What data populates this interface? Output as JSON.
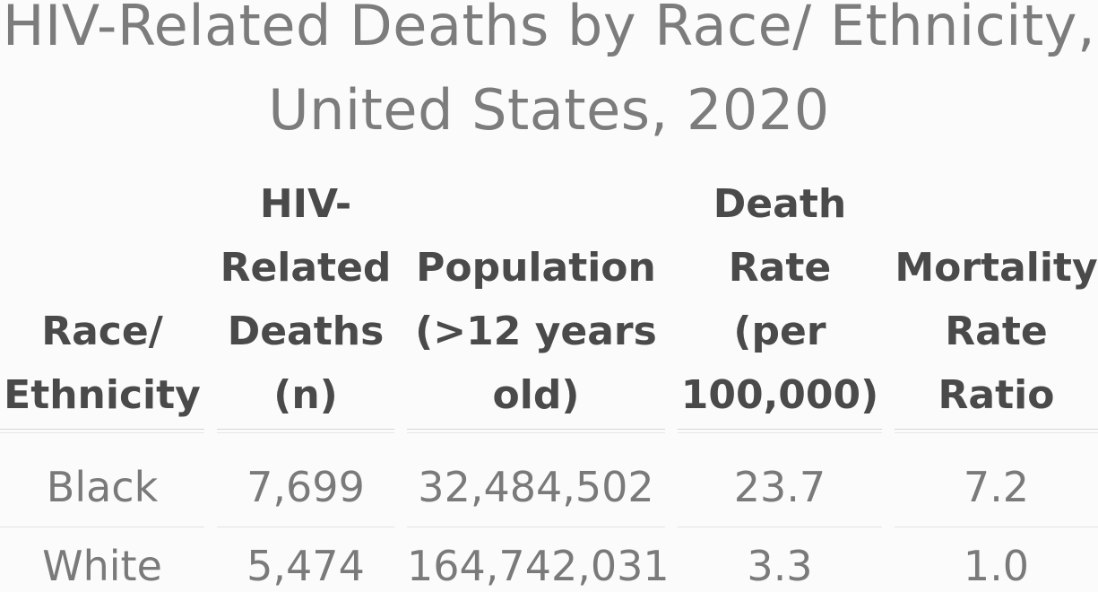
{
  "title": {
    "line1": "HIV-Related Deaths by Race/ Ethnicity,",
    "line2": "United States, 2020"
  },
  "table": {
    "headers": [
      "Race/\nEthnicity",
      "HIV-\nRelated\nDeaths\n(n)",
      "Population\n(>12 years\nold)",
      "Death\nRate\n(per\n100,000)",
      "Mortality\nRate\nRatio"
    ],
    "rows": [
      [
        "Black",
        "7,699",
        "32,484,502",
        "23.7",
        "7.2"
      ],
      [
        "White",
        "5,474",
        "164,742,031",
        "3.3",
        "1.0"
      ]
    ]
  }
}
